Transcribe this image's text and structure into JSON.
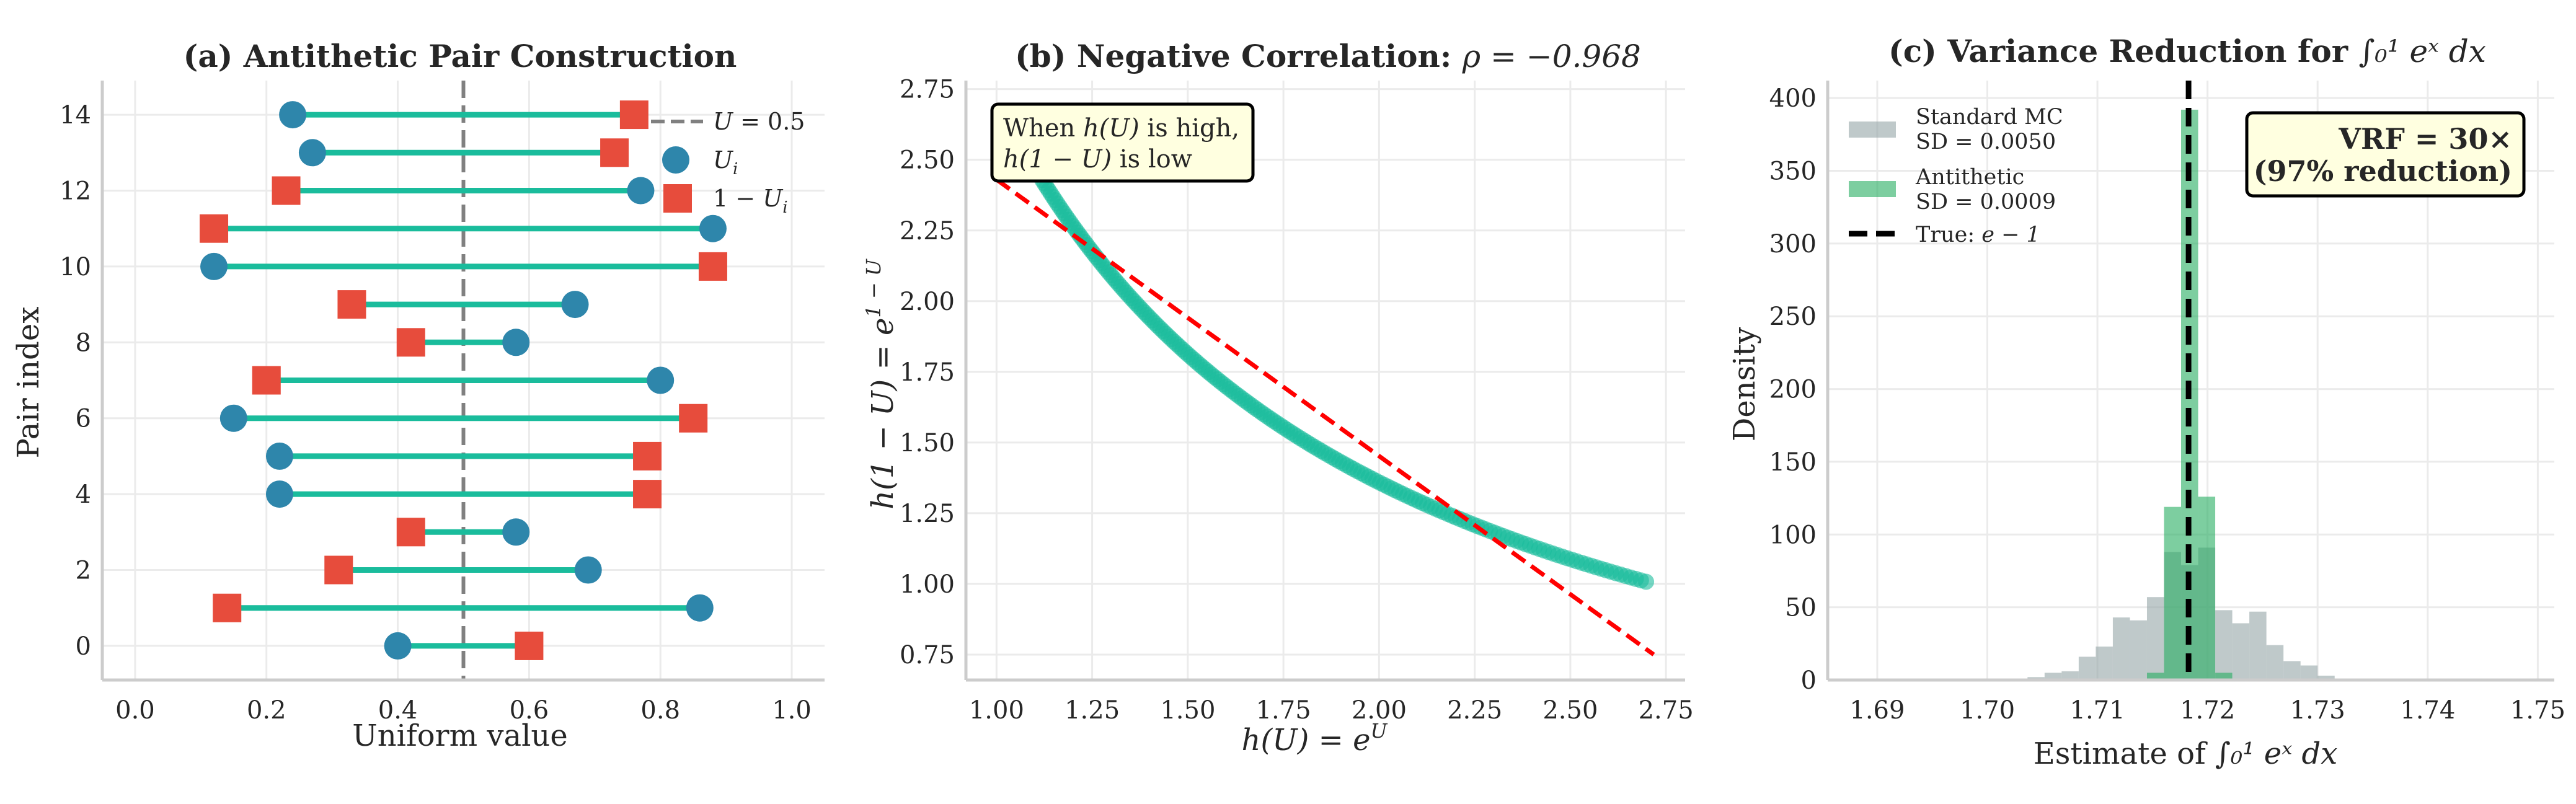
{
  "figure": {
    "panels": [
      "a",
      "b",
      "c"
    ]
  },
  "chart_data": [
    {
      "id": "a",
      "type": "scatter",
      "subtype": "dumbbell",
      "title": "(a) Antithetic Pair Construction",
      "xlabel": "Uniform value",
      "ylabel": "Pair index",
      "xlim": [
        -0.05,
        1.05
      ],
      "ylim": [
        -0.9,
        14.9
      ],
      "xticks": [
        "0.0",
        "0.2",
        "0.4",
        "0.6",
        "0.8",
        "1.0"
      ],
      "xtick_values": [
        0.0,
        0.2,
        0.4,
        0.6,
        0.8,
        1.0
      ],
      "yticks": [
        "0",
        "2",
        "4",
        "6",
        "8",
        "10",
        "12",
        "14"
      ],
      "ytick_values": [
        0,
        2,
        4,
        6,
        8,
        10,
        12,
        14
      ],
      "grid": true,
      "reference_line": {
        "x": 0.5,
        "label": "U = 0.5",
        "style": "dashed",
        "color": "#808080"
      },
      "pairs": [
        {
          "index": 0,
          "u": 0.4,
          "one_minus_u": 0.6
        },
        {
          "index": 1,
          "u": 0.86,
          "one_minus_u": 0.14
        },
        {
          "index": 2,
          "u": 0.69,
          "one_minus_u": 0.31
        },
        {
          "index": 3,
          "u": 0.58,
          "one_minus_u": 0.42
        },
        {
          "index": 4,
          "u": 0.22,
          "one_minus_u": 0.78
        },
        {
          "index": 5,
          "u": 0.22,
          "one_minus_u": 0.78
        },
        {
          "index": 6,
          "u": 0.15,
          "one_minus_u": 0.85
        },
        {
          "index": 7,
          "u": 0.8,
          "one_minus_u": 0.2
        },
        {
          "index": 8,
          "u": 0.58,
          "one_minus_u": 0.42
        },
        {
          "index": 9,
          "u": 0.67,
          "one_minus_u": 0.33
        },
        {
          "index": 10,
          "u": 0.12,
          "one_minus_u": 0.88
        },
        {
          "index": 11,
          "u": 0.88,
          "one_minus_u": 0.12
        },
        {
          "index": 12,
          "u": 0.77,
          "one_minus_u": 0.23
        },
        {
          "index": 13,
          "u": 0.27,
          "one_minus_u": 0.73
        },
        {
          "index": 14,
          "u": 0.24,
          "one_minus_u": 0.76
        }
      ],
      "legend": {
        "placement": "top-right",
        "entries": [
          {
            "label_main": "U = 0.5",
            "marker": "dashed-line",
            "color": "#808080"
          },
          {
            "label_main": "U",
            "label_sub": "i",
            "marker": "circle",
            "color": "#2e86ab"
          },
          {
            "label_main": "1 − U",
            "label_sub": "i",
            "marker": "square",
            "color": "#e74c3c"
          }
        ]
      },
      "colors": {
        "u": "#2e86ab",
        "one_minus_u": "#e74c3c",
        "connector": "#1abc9c",
        "reference": "#808080"
      }
    },
    {
      "id": "b",
      "type": "scatter",
      "title_prefix": "(b) Negative Correlation: ",
      "title_math": "ρ = −0.968",
      "correlation": -0.968,
      "xlabel": "h(U) = e^U",
      "xlabel_main": "h(U) = e",
      "xlabel_sup": "U",
      "ylabel_main": "h(1 − U) = e",
      "ylabel_sup": "1 − U",
      "xlim": [
        0.92,
        2.8
      ],
      "ylim": [
        0.66,
        2.78
      ],
      "xticks": [
        "1.00",
        "1.25",
        "1.50",
        "1.75",
        "2.00",
        "2.25",
        "2.50",
        "2.75"
      ],
      "xtick_values": [
        1.0,
        1.25,
        1.5,
        1.75,
        2.0,
        2.25,
        2.5,
        2.75
      ],
      "yticks": [
        "0.75",
        "1.00",
        "1.25",
        "1.50",
        "1.75",
        "2.00",
        "2.25",
        "2.50",
        "2.75"
      ],
      "ytick_values": [
        0.75,
        1.0,
        1.25,
        1.5,
        1.75,
        2.0,
        2.25,
        2.5,
        2.75
      ],
      "grid": true,
      "series": [
        {
          "name": "samples",
          "relation": "y = e / x",
          "x_range": [
            1.0,
            2.7
          ],
          "n_points": 200,
          "color": "#1abc9c",
          "alpha": 0.6
        },
        {
          "name": "linear fit",
          "style": "dashed",
          "color": "#ff0000",
          "x": [
            1.0,
            2.718
          ],
          "y": [
            2.43,
            0.75
          ]
        }
      ],
      "annotation": {
        "line1_prefix": "When ",
        "line1_math": "h(U)",
        "line1_suffix": " is high,",
        "line2_math": "h(1 − U)",
        "line2_suffix": " is low",
        "placement": "top-left",
        "box_color": "#ffffe0"
      }
    },
    {
      "id": "c",
      "type": "bar",
      "subtype": "histogram",
      "title_prefix": "(c) Variance Reduction for ",
      "title_math": "∫₀¹ eˣ dx",
      "xlabel_prefix": "Estimate of ",
      "xlabel_math": "∫₀¹ eˣ dx",
      "ylabel": "Density",
      "xlim": [
        1.6855,
        1.7515
      ],
      "ylim": [
        0,
        412
      ],
      "xticks": [
        "1.69",
        "1.70",
        "1.71",
        "1.72",
        "1.73",
        "1.74",
        "1.75"
      ],
      "xtick_values": [
        1.69,
        1.7,
        1.71,
        1.72,
        1.73,
        1.74,
        1.75
      ],
      "yticks": [
        "0",
        "50",
        "100",
        "150",
        "200",
        "250",
        "300",
        "350",
        "400"
      ],
      "ytick_values": [
        0,
        50,
        100,
        150,
        200,
        250,
        300,
        350,
        400
      ],
      "grid": true,
      "bin_width": 0.00155,
      "series": [
        {
          "name": "Standard MC",
          "sd_label": "SD = 0.0050",
          "sd": 0.005,
          "color": "#95a5a6",
          "alpha": 0.6,
          "bin_starts": [
            1.70365,
            1.7052,
            1.70675,
            1.7083,
            1.70985,
            1.7114,
            1.71295,
            1.7145,
            1.71605,
            1.7176,
            1.71915,
            1.7207,
            1.72225,
            1.7238,
            1.72535,
            1.7269,
            1.72845,
            1.73,
            1.73155
          ],
          "densities": [
            2,
            5,
            6,
            16,
            23,
            43,
            41,
            57,
            88,
            79,
            91,
            48,
            39,
            47,
            24,
            13,
            10,
            3,
            1
          ]
        },
        {
          "name": "Antithetic",
          "sd_label": "SD = 0.0009",
          "sd": 0.0009,
          "color": "#27ae60",
          "alpha": 0.6,
          "bin_starts": [
            1.7145,
            1.71605,
            1.7176,
            1.71915,
            1.7207
          ],
          "densities": [
            5,
            119,
            392,
            126,
            5
          ]
        }
      ],
      "reference_line": {
        "x": 1.71828,
        "label_prefix": "True: ",
        "label_math": "e − 1",
        "style": "dashed",
        "color": "#000000"
      },
      "legend": {
        "placement": "top-left"
      },
      "annotation": {
        "line1": "VRF = 30×",
        "line2": "(97% reduction)",
        "vrf": 30,
        "reduction_percent": 97,
        "placement": "top-right",
        "box_color": "#ffffe0"
      }
    }
  ]
}
